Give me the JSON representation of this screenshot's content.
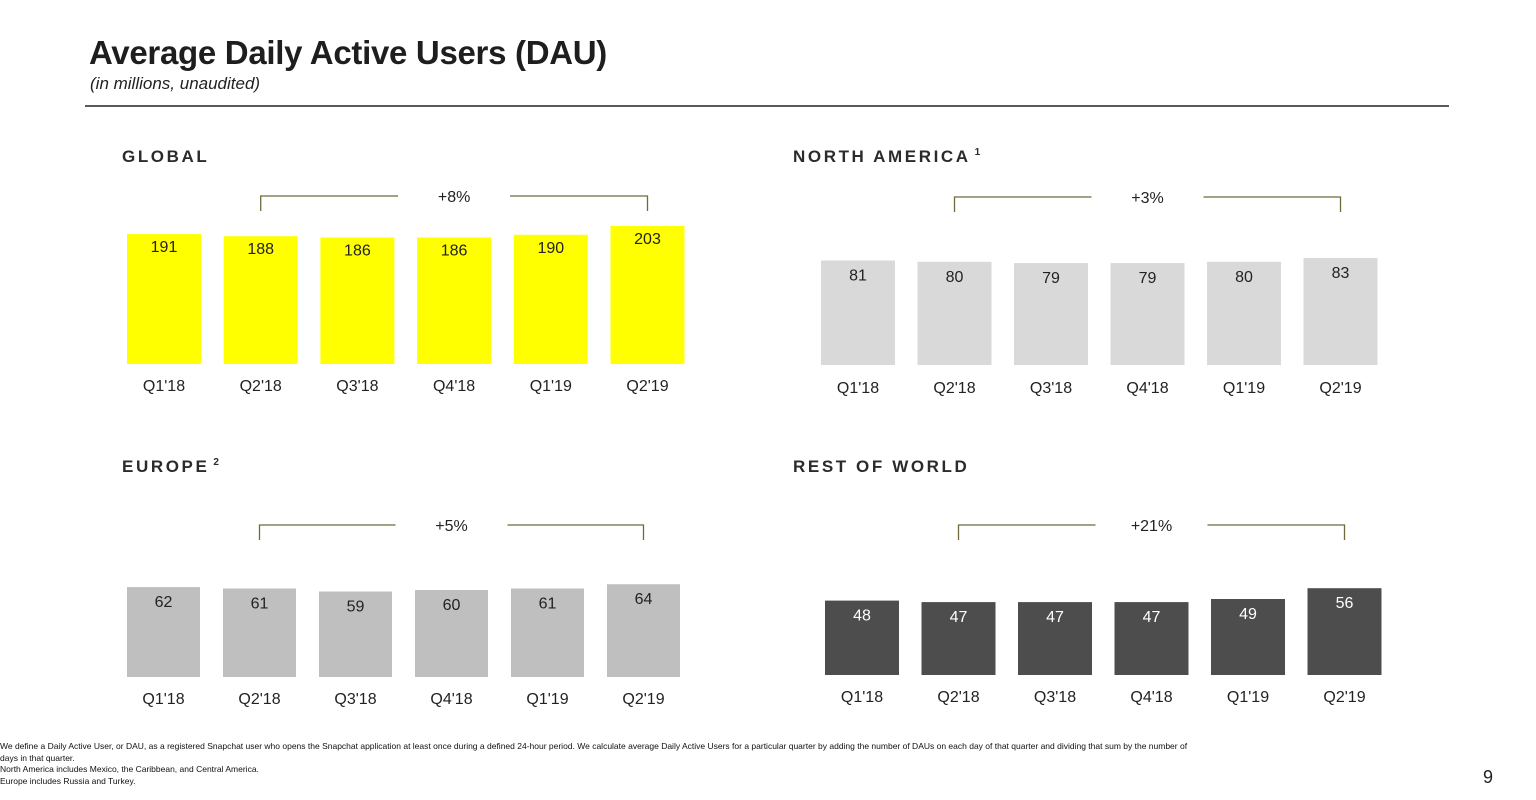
{
  "slide": {
    "title": "Average Daily Active Users (DAU)",
    "subtitle": "(in millions, unaudited)",
    "page_number": "9",
    "footnotes": [
      "We define a Daily Active User, or DAU, as a registered Snapchat user who opens the Snapchat application at least once during a defined 24-hour period. We calculate average Daily Active Users for a particular quarter by adding the number of DAUs on each day of that quarter and dividing that sum by the number of",
      "days in that quarter.",
      "North America includes Mexico, the Caribbean, and Central America.",
      "Europe includes Russia and Turkey."
    ]
  },
  "chart_data": [
    {
      "type": "bar",
      "title": "GLOBAL",
      "title_superscript": "",
      "categories": [
        "Q1'18",
        "Q2'18",
        "Q3'18",
        "Q4'18",
        "Q1'19",
        "Q2'19"
      ],
      "values": [
        191,
        188,
        186,
        186,
        190,
        203
      ],
      "growth_annotation": "+8%",
      "growth_from": "Q2'18",
      "growth_to": "Q2'19",
      "bar_color": "#ffff00",
      "label_color": "#222222"
    },
    {
      "type": "bar",
      "title": "NORTH AMERICA",
      "title_superscript": "1",
      "categories": [
        "Q1'18",
        "Q2'18",
        "Q3'18",
        "Q4'18",
        "Q1'19",
        "Q2'19"
      ],
      "values": [
        81,
        80,
        79,
        79,
        80,
        83
      ],
      "growth_annotation": "+3%",
      "growth_from": "Q2'18",
      "growth_to": "Q2'19",
      "bar_color": "#d9d9d9",
      "label_color": "#222222"
    },
    {
      "type": "bar",
      "title": "EUROPE",
      "title_superscript": "2",
      "categories": [
        "Q1'18",
        "Q2'18",
        "Q3'18",
        "Q4'18",
        "Q1'19",
        "Q2'19"
      ],
      "values": [
        62,
        61,
        59,
        60,
        61,
        64
      ],
      "growth_annotation": "+5%",
      "growth_from": "Q2'18",
      "growth_to": "Q2'19",
      "bar_color": "#bfbfbf",
      "label_color": "#222222"
    },
    {
      "type": "bar",
      "title": "REST OF WORLD",
      "title_superscript": "",
      "categories": [
        "Q1'18",
        "Q2'18",
        "Q3'18",
        "Q4'18",
        "Q1'19",
        "Q2'19"
      ],
      "values": [
        48,
        47,
        47,
        47,
        49,
        56
      ],
      "growth_annotation": "+21%",
      "growth_from": "Q2'18",
      "growth_to": "Q2'19",
      "bar_color": "#4d4d4d",
      "label_color": "#ffffff"
    }
  ],
  "colors": {
    "bracket": "#6e6a3a",
    "rule": "#5a5a5a",
    "text": "#222222"
  }
}
